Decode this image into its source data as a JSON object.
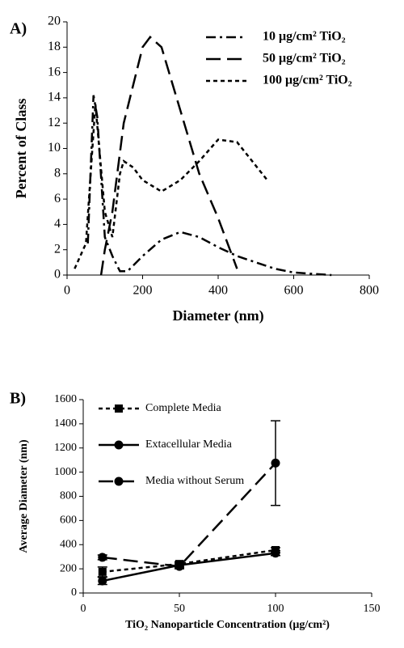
{
  "chart_data": [
    {
      "type": "line",
      "label": "A)",
      "xlabel": "Diameter (nm)",
      "ylabel": "Percent of Class",
      "xlim": [
        0,
        800
      ],
      "xticks": [
        0,
        200,
        400,
        600,
        800
      ],
      "ylim": [
        0,
        20
      ],
      "yticks": [
        0,
        2,
        4,
        6,
        8,
        10,
        12,
        14,
        16,
        18,
        20
      ],
      "series": [
        {
          "name": "10 μg/cm² TiO₂",
          "color": "#000000",
          "dash": "dash-dot",
          "x": [
            55,
            70,
            80,
            100,
            120,
            140,
            160,
            200,
            250,
            300,
            350,
            400,
            450,
            500,
            550,
            600,
            650,
            700
          ],
          "values": [
            2.5,
            14.2,
            12.5,
            3,
            1.5,
            0.3,
            0.3,
            1.5,
            2.8,
            3.4,
            3,
            2.2,
            1.5,
            1,
            0.5,
            0.2,
            0.1,
            0
          ]
        },
        {
          "name": "50 μg/cm² TiO₂",
          "color": "#000000",
          "dash": "long-dash",
          "x": [
            90,
            100,
            120,
            150,
            200,
            220,
            250,
            300,
            350,
            400,
            450
          ],
          "values": [
            0,
            2,
            5,
            12,
            18,
            18.8,
            18,
            13,
            8,
            4.5,
            0.5
          ]
        },
        {
          "name": "100 μg/cm² TiO₂",
          "color": "#000000",
          "dash": "short-dash",
          "x": [
            20,
            50,
            75,
            100,
            120,
            140,
            150,
            175,
            200,
            250,
            300,
            350,
            400,
            450,
            530
          ],
          "values": [
            0.5,
            2.5,
            13.5,
            5,
            3,
            8,
            9,
            8.5,
            7.5,
            6.6,
            7.5,
            9,
            10.7,
            10.5,
            7.5
          ]
        }
      ]
    },
    {
      "type": "line",
      "label": "B)",
      "xlabel": "TiO₂ Nanoparticle Concentration (μg/cm²)",
      "ylabel": "Average Diameter (nm)",
      "xlim": [
        0,
        150
      ],
      "xticks": [
        0,
        50,
        100,
        150
      ],
      "ylim": [
        0,
        1600
      ],
      "yticks": [
        0,
        200,
        400,
        600,
        800,
        1000,
        1200,
        1400,
        1600
      ],
      "x": [
        10,
        50,
        100
      ],
      "series": [
        {
          "name": "Complete Media",
          "color": "#000000",
          "dash": "short-dash",
          "marker": "square",
          "values": [
            175,
            240,
            355
          ],
          "errors": [
            40,
            20,
            20
          ]
        },
        {
          "name": "Extacellular Media",
          "color": "#000000",
          "dash": "solid",
          "marker": "circle",
          "values": [
            100,
            230,
            330
          ],
          "errors": [
            30,
            20,
            20
          ]
        },
        {
          "name": "Media without Serum",
          "color": "#000000",
          "dash": "long-dash",
          "marker": "circle",
          "values": [
            295,
            220,
            1075
          ],
          "errors": [
            20,
            20,
            350
          ]
        }
      ]
    }
  ]
}
